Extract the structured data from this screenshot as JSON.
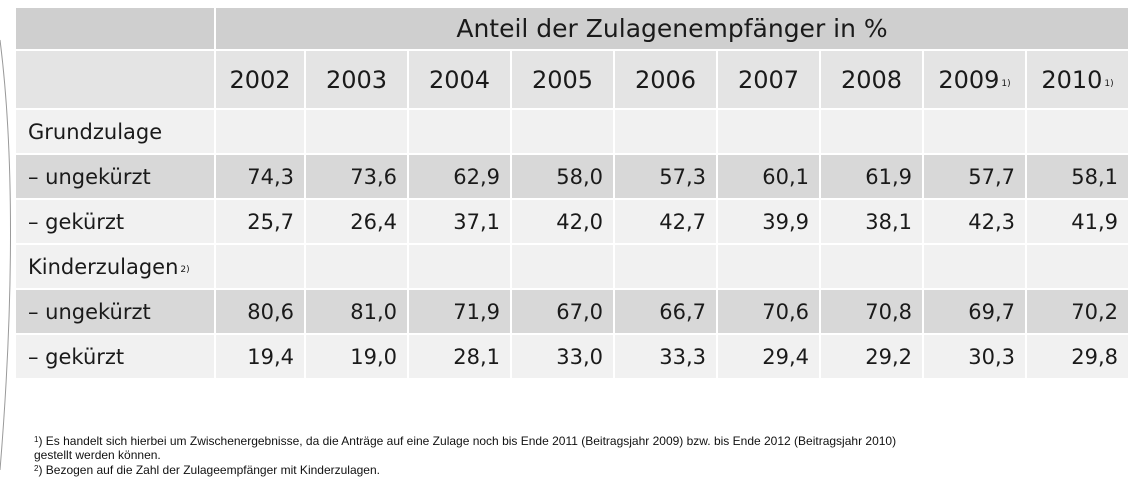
{
  "chart_data": {
    "type": "table",
    "title": "Anteil der Zulagenempfänger in %",
    "columns": [
      {
        "label": "2002",
        "note": ""
      },
      {
        "label": "2003",
        "note": ""
      },
      {
        "label": "2004",
        "note": ""
      },
      {
        "label": "2005",
        "note": ""
      },
      {
        "label": "2006",
        "note": ""
      },
      {
        "label": "2007",
        "note": ""
      },
      {
        "label": "2008",
        "note": ""
      },
      {
        "label": "2009",
        "note": "1)"
      },
      {
        "label": "2010",
        "note": "1)"
      }
    ],
    "groups": [
      {
        "label": "Grundzulage",
        "note": "",
        "rows": [
          {
            "label": "– ungekürzt",
            "values": [
              "74,3",
              "73,6",
              "62,9",
              "58,0",
              "57,3",
              "60,1",
              "61,9",
              "57,7",
              "58,1"
            ]
          },
          {
            "label": "– gekürzt",
            "values": [
              "25,7",
              "26,4",
              "37,1",
              "42,0",
              "42,7",
              "39,9",
              "38,1",
              "42,3",
              "41,9"
            ]
          }
        ]
      },
      {
        "label": "Kinderzulagen",
        "note": "2)",
        "rows": [
          {
            "label": "– ungekürzt",
            "values": [
              "80,6",
              "81,0",
              "71,9",
              "67,0",
              "66,7",
              "70,6",
              "70,8",
              "69,7",
              "70,2"
            ]
          },
          {
            "label": "– gekürzt",
            "values": [
              "19,4",
              "19,0",
              "28,1",
              "33,0",
              "33,3",
              "29,4",
              "29,2",
              "30,3",
              "29,8"
            ]
          }
        ]
      }
    ]
  },
  "footnotes": [
    {
      "marker": "1",
      "text_lines": [
        ") Es handelt sich hierbei um Zwischenergebnisse, da die Anträge auf eine Zulage noch bis Ende 2011 (Beitragsjahr 2009) bzw. bis Ende 2012 (Beitragsjahr 2010)",
        "gestellt werden können."
      ]
    },
    {
      "marker": "2",
      "text_lines": [
        ") Bezogen auf die Zahl der Zulageempfänger mit Kinderzulagen."
      ]
    }
  ],
  "colors": {
    "header_title_bg": "#cfcfcf",
    "header_year_bg": "#e4e4e4",
    "row_dark_bg": "#d8d8d8",
    "row_light_bg": "#f1f1f1",
    "text": "#1a1a1a"
  }
}
